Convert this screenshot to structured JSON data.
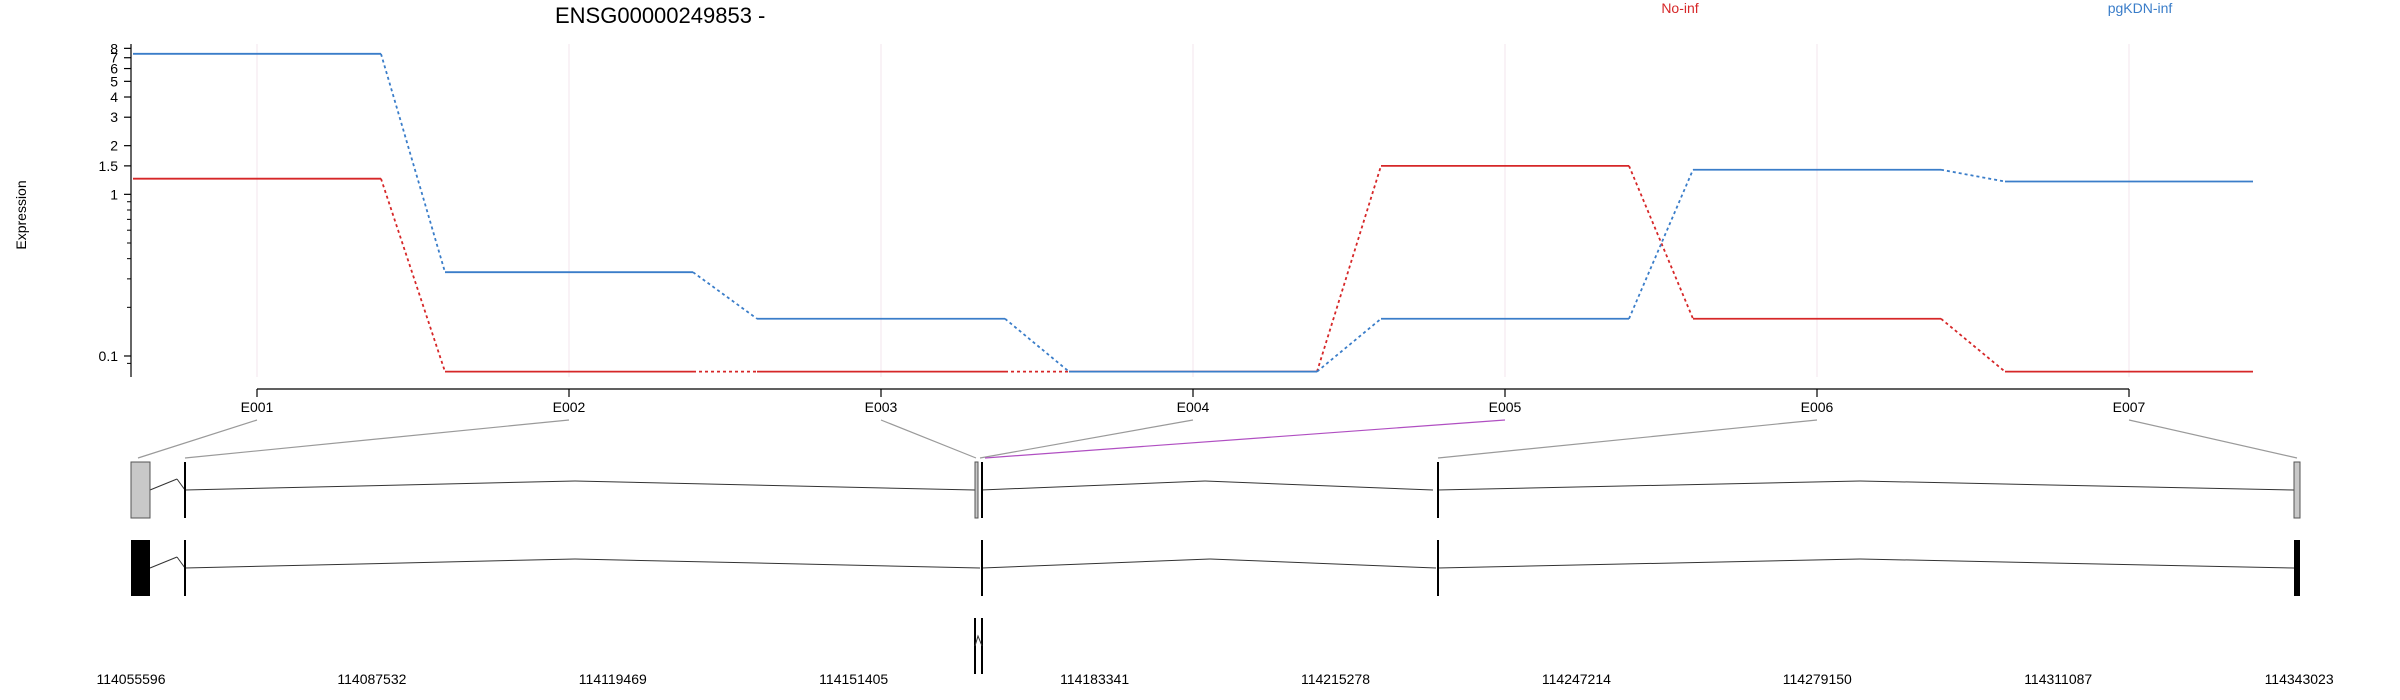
{
  "chart_data": {
    "type": "line",
    "title": "ENSG00000249853 -",
    "ylabel": "Expression",
    "y_scale": "log",
    "y_ticks": [
      "0.1",
      "1",
      "1.5",
      "2",
      "3",
      "4",
      "5",
      "6",
      "7",
      "8"
    ],
    "categories": [
      "E001",
      "E002",
      "E003",
      "E004",
      "E005",
      "E006",
      "E007"
    ],
    "series": [
      {
        "name": "No-inf",
        "color": "#d62728",
        "values": [
          1.25,
          0.08,
          0.08,
          0.08,
          1.5,
          0.17,
          0.08
        ]
      },
      {
        "name": "pgKDN-inf",
        "color": "#3a7dc9",
        "values": [
          7.4,
          0.33,
          0.17,
          0.08,
          0.17,
          1.42,
          1.2
        ]
      }
    ],
    "grid": true,
    "legend_position": "top"
  },
  "gene_model": {
    "coordinates": [
      "114055596",
      "114087532",
      "114119469",
      "114151405",
      "114183341",
      "114215278",
      "114247214",
      "114279150",
      "114311087",
      "114343023"
    ]
  }
}
